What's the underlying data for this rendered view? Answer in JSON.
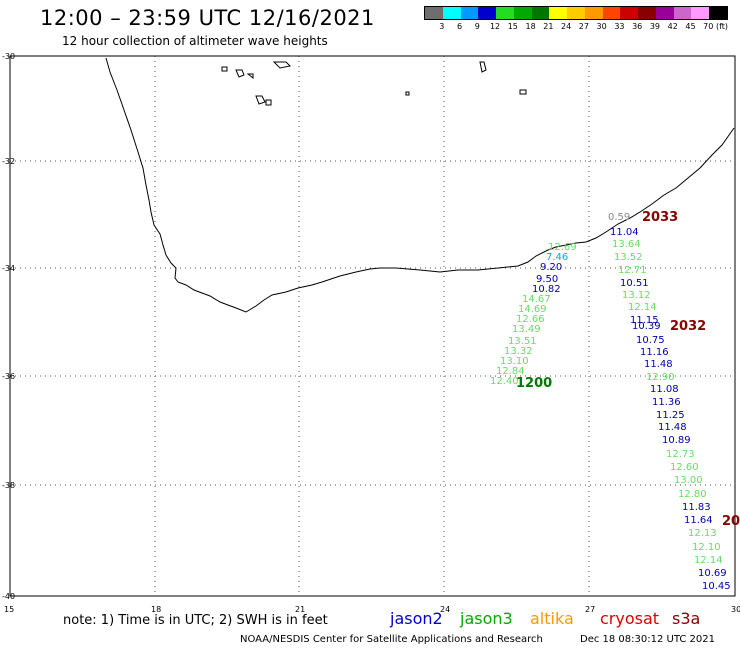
{
  "header": {
    "title": "12:00 – 23:59 UTC 12/16/2021",
    "subtitle": "12 hour collection of altimeter wave heights"
  },
  "legend": {
    "colors": [
      "#6e6e6e",
      "#00ffff",
      "#0099ff",
      "#0000cc",
      "#22dd22",
      "#00aa00",
      "#007700",
      "#ffff00",
      "#ffcc00",
      "#ff9900",
      "#ff4400",
      "#cc0000",
      "#880000",
      "#990099",
      "#cc66cc",
      "#ff99ff",
      "#000000"
    ],
    "labels": [
      "3",
      "6",
      "9",
      "12",
      "15",
      "18",
      "21",
      "24",
      "27",
      "30",
      "33",
      "36",
      "39",
      "42",
      "45",
      "70",
      "(ft)"
    ]
  },
  "axes": {
    "y_labels": [
      "-30",
      "-32",
      "-34",
      "-36",
      "-38",
      "-40"
    ],
    "x_labels": [
      "15",
      "18",
      "21",
      "24",
      "27",
      "30"
    ]
  },
  "tracks": [
    {
      "color": "#00aa00",
      "time": "1200",
      "time_color": "#007700",
      "labels": [
        {
          "v": "12.69",
          "c": "#66dd66"
        },
        {
          "v": "7.46",
          "c": "#00aaff"
        },
        {
          "v": "9.20",
          "c": "#0000aa"
        },
        {
          "v": "9.50",
          "c": "#0000aa"
        },
        {
          "v": "10.82",
          "c": "#0000aa"
        },
        {
          "v": "14.67",
          "c": "#66dd66"
        },
        {
          "v": "14.69",
          "c": "#66dd66"
        },
        {
          "v": "12.66",
          "c": "#66dd66"
        },
        {
          "v": "13.49",
          "c": "#66dd66"
        },
        {
          "v": "13.51",
          "c": "#66dd66"
        },
        {
          "v": "13.32",
          "c": "#66dd66"
        },
        {
          "v": "13.10",
          "c": "#66dd66"
        },
        {
          "v": "12.84",
          "c": "#66dd66"
        },
        {
          "v": "12.40",
          "c": "#66dd66"
        }
      ]
    },
    {
      "color": "#880000",
      "time": "2033",
      "time_color": "#880000",
      "labels": [
        {
          "v": "0.59",
          "c": "#888888"
        },
        {
          "v": "11.04",
          "c": "#0000aa"
        },
        {
          "v": "13.64",
          "c": "#66dd66"
        },
        {
          "v": "13.52",
          "c": "#66dd66"
        },
        {
          "v": "12.71",
          "c": "#66dd66"
        },
        {
          "v": "10.51",
          "c": "#0000aa"
        },
        {
          "v": "13.12",
          "c": "#66dd66"
        },
        {
          "v": "12.14",
          "c": "#66dd66"
        },
        {
          "v": "11.15",
          "c": "#0000aa"
        }
      ]
    },
    {
      "color": "#880000",
      "time": "2032",
      "time_color": "#880000",
      "labels": [
        {
          "v": "10.39",
          "c": "#0000aa"
        },
        {
          "v": "10.75",
          "c": "#0000aa"
        },
        {
          "v": "11.16",
          "c": "#0000aa"
        },
        {
          "v": "11.48",
          "c": "#0000aa"
        },
        {
          "v": "12.90",
          "c": "#66dd66"
        },
        {
          "v": "11.08",
          "c": "#0000aa"
        },
        {
          "v": "11.36",
          "c": "#0000aa"
        },
        {
          "v": "11.25",
          "c": "#0000aa"
        },
        {
          "v": "11.48",
          "c": "#0000aa"
        },
        {
          "v": "10.89",
          "c": "#0000aa"
        },
        {
          "v": "12.73",
          "c": "#66dd66"
        },
        {
          "v": "12.60",
          "c": "#66dd66"
        },
        {
          "v": "13.00",
          "c": "#66dd66"
        },
        {
          "v": "12.80",
          "c": "#66dd66"
        },
        {
          "v": "11.83",
          "c": "#0000aa"
        },
        {
          "v": "11.64",
          "c": "#0000aa"
        },
        {
          "v": "12.13",
          "c": "#66dd66"
        },
        {
          "v": "12.10",
          "c": "#66dd66"
        },
        {
          "v": "12.14",
          "c": "#66dd66"
        },
        {
          "v": "10.69",
          "c": "#0000aa"
        },
        {
          "v": "10.45",
          "c": "#0000aa"
        }
      ]
    },
    {
      "time": "20",
      "time_color": "#880000"
    }
  ],
  "footer": {
    "note": "note: 1) Time is in UTC; 2) SWH is in feet",
    "satellites": [
      {
        "name": "jason2",
        "color": "#0000cc"
      },
      {
        "name": "jason3",
        "color": "#00aa00"
      },
      {
        "name": "altika",
        "color": "#ff9900"
      },
      {
        "name": "cryosat",
        "color": "#dd0000"
      },
      {
        "name": "s3a",
        "color": "#880000"
      }
    ],
    "credit": "NOAA/NESDIS Center for Satellite Applications and Research",
    "timestamp": "Dec 18 08:30:12 UTC 2021"
  }
}
